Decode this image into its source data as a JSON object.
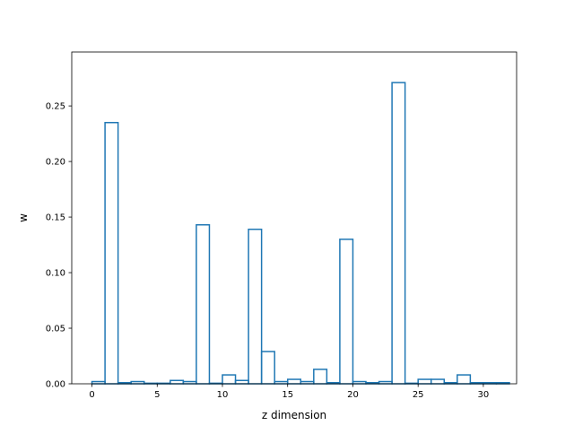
{
  "chart_data": {
    "type": "bar",
    "style": "step",
    "title": "",
    "xlabel": "z dimension",
    "ylabel": "w",
    "xlim": [
      -1.55,
      32.55
    ],
    "ylim": [
      0,
      0.2985
    ],
    "grid": false,
    "line_color": "#1f77b4",
    "x_ticks": [
      "0",
      "5",
      "10",
      "15",
      "20",
      "25",
      "30"
    ],
    "x_tick_values": [
      0,
      5,
      10,
      15,
      20,
      25,
      30
    ],
    "y_ticks": [
      "0.00",
      "0.05",
      "0.10",
      "0.15",
      "0.20",
      "0.25"
    ],
    "y_tick_values": [
      0,
      0.05,
      0.1,
      0.15,
      0.2,
      0.25
    ],
    "categories": [
      0,
      1,
      2,
      3,
      4,
      5,
      6,
      7,
      8,
      9,
      10,
      11,
      12,
      13,
      14,
      15,
      16,
      17,
      18,
      19,
      20,
      21,
      22,
      23,
      24,
      25,
      26,
      27,
      28,
      29,
      30,
      31
    ],
    "values": [
      0.002,
      0.235,
      0.001,
      0.002,
      0.0005,
      0.0005,
      0.003,
      0.002,
      0.143,
      0.0005,
      0.008,
      0.003,
      0.139,
      0.029,
      0.002,
      0.004,
      0.002,
      0.013,
      0.001,
      0.13,
      0.002,
      0.001,
      0.002,
      0.271,
      0.0005,
      0.004,
      0.004,
      0.001,
      0.008,
      0.001,
      0.001,
      0.001
    ]
  }
}
